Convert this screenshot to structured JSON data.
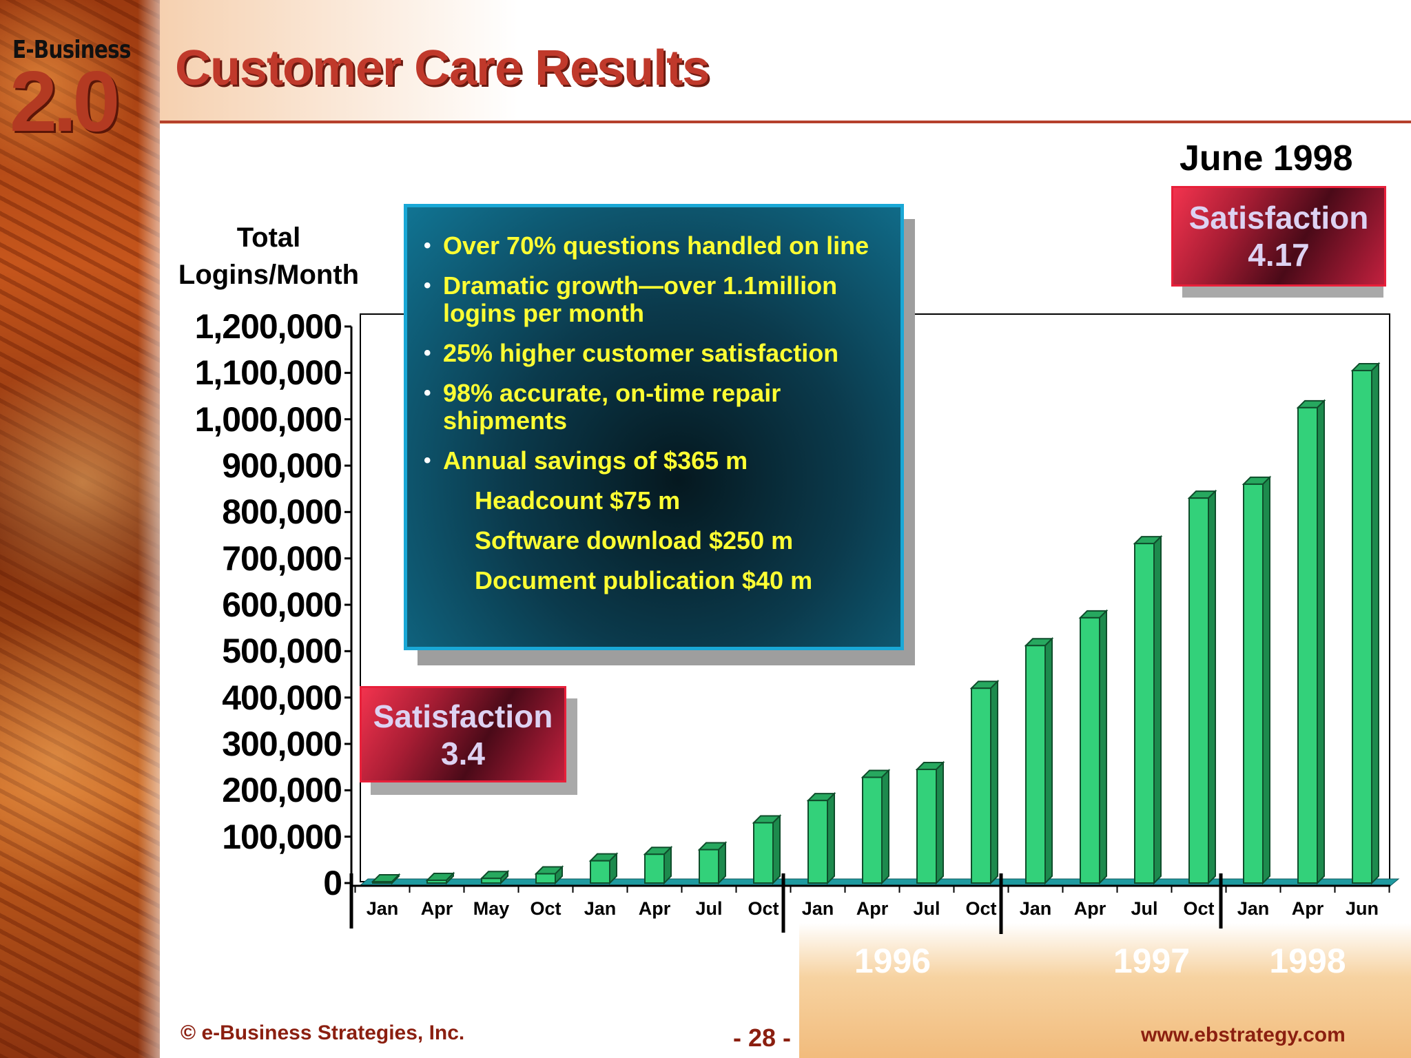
{
  "logo": {
    "line1": "E-Business",
    "line2": "2.0"
  },
  "title": "Customer Care Results",
  "date_label": "June 1998",
  "infobox": {
    "bullets": [
      "Over 70% questions handled on line",
      "Dramatic growth—over 1.1million logins per month",
      "25% higher customer satisfaction",
      "98% accurate, on-time repair shipments",
      "Annual savings of $365 m"
    ],
    "sub_items": [
      "Headcount $75 m",
      "Software download $250 m",
      "Document publication $40 m"
    ]
  },
  "satisfaction_start": {
    "label": "Satisfaction",
    "value": "3.4"
  },
  "satisfaction_end": {
    "label": "Satisfaction",
    "value": "4.17"
  },
  "chart_data": {
    "type": "bar",
    "title": "",
    "ylabel": "Total Logins/Month",
    "xlabel": "",
    "ylim": [
      0,
      1200000
    ],
    "yticks": [
      "1,200,000",
      "1,100,000",
      "1,000,000",
      "900,000",
      "800,000",
      "700,000",
      "600,000",
      "500,000",
      "400,000",
      "300,000",
      "200,000",
      "100,000",
      "0"
    ],
    "categories": [
      "Jan",
      "Apr",
      "May",
      "Oct",
      "Jan",
      "Apr",
      "Jul",
      "Oct",
      "Jan",
      "Apr",
      "Jul",
      "Oct",
      "Jan",
      "Apr",
      "Jul",
      "Oct",
      "Jan",
      "Apr",
      "Jun"
    ],
    "values": [
      3000,
      6000,
      10000,
      20000,
      48000,
      62000,
      72000,
      130000,
      178000,
      228000,
      245000,
      420000,
      512000,
      572000,
      732000,
      830000,
      860000,
      1025000,
      1105000
    ],
    "year_groups": [
      {
        "label": "1996",
        "start": 8,
        "end": 11
      },
      {
        "label": "1997",
        "start": 12,
        "end": 15
      },
      {
        "label": "1998",
        "start": 16,
        "end": 18
      }
    ],
    "bar_color": "#33d17a",
    "grid": false
  },
  "footer": {
    "copyright": "© e-Business Strategies, Inc.",
    "page": "- 28 -",
    "url": "www.ebstrategy.com"
  }
}
